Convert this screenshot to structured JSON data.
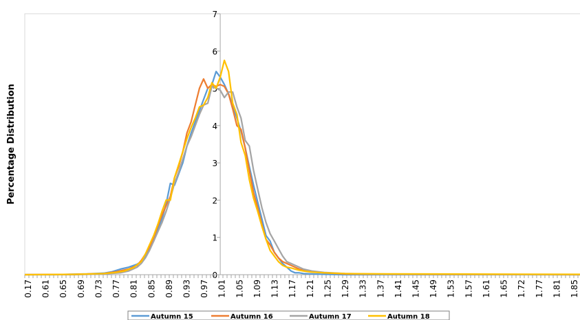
{
  "chart_data": {
    "type": "line",
    "title": "",
    "xlabel": "",
    "ylabel": "Percentage Distribution",
    "ylim": [
      0,
      7
    ],
    "yticks": [
      0,
      1,
      2,
      3,
      4,
      5,
      6,
      7
    ],
    "xlim": [
      0.53,
      1.87
    ],
    "x_tick_labels": [
      "0.17",
      "0.61",
      "0.65",
      "0.69",
      "0.73",
      "0.77",
      "0.81",
      "0.85",
      "0.89",
      "0.93",
      "0.97",
      "1.01",
      "1.05",
      "1.09",
      "1.13",
      "1.17",
      "1.21",
      "1.25",
      "1.29",
      "1.33",
      "1.37",
      "1.41",
      "1.45",
      "1.49",
      "1.53",
      "1.57",
      "1.61",
      "1.65",
      "1.72",
      "1.77",
      "1.81",
      "1.85"
    ],
    "grid": false,
    "legend_position": "bottom",
    "series": [
      {
        "name": "Autumn 15",
        "color": "#5B9BD5",
        "x": [
          0.53,
          0.6,
          0.68,
          0.72,
          0.74,
          0.76,
          0.78,
          0.8,
          0.81,
          0.82,
          0.83,
          0.84,
          0.85,
          0.86,
          0.87,
          0.88,
          0.89,
          0.9,
          0.91,
          0.92,
          0.93,
          0.94,
          0.95,
          0.96,
          0.97,
          0.98,
          0.99,
          1.0,
          1.01,
          1.02,
          1.03,
          1.04,
          1.05,
          1.06,
          1.07,
          1.08,
          1.09,
          1.1,
          1.11,
          1.12,
          1.13,
          1.14,
          1.15,
          1.16,
          1.17,
          1.18,
          1.19,
          1.2,
          1.22,
          1.25,
          1.3,
          1.4,
          1.6,
          1.87
        ],
        "y": [
          0,
          0,
          0.02,
          0.04,
          0.08,
          0.15,
          0.2,
          0.28,
          0.35,
          0.5,
          0.7,
          0.9,
          1.2,
          1.5,
          1.9,
          2.45,
          2.4,
          2.7,
          3.0,
          3.45,
          3.8,
          4.1,
          4.4,
          4.7,
          5.0,
          5.1,
          5.45,
          5.3,
          5.1,
          4.85,
          4.55,
          4.2,
          3.85,
          3.4,
          2.9,
          2.4,
          1.95,
          1.5,
          1.05,
          0.9,
          0.6,
          0.45,
          0.3,
          0.2,
          0.1,
          0.05,
          0.05,
          0.03,
          0.02,
          0.01,
          0,
          0,
          0,
          0
        ]
      },
      {
        "name": "Autumn 16",
        "color": "#ED7D31",
        "x": [
          0.53,
          0.65,
          0.72,
          0.75,
          0.78,
          0.8,
          0.81,
          0.82,
          0.83,
          0.84,
          0.85,
          0.86,
          0.87,
          0.88,
          0.89,
          0.9,
          0.91,
          0.92,
          0.93,
          0.94,
          0.95,
          0.96,
          0.97,
          0.98,
          0.99,
          1.0,
          1.01,
          1.02,
          1.03,
          1.04,
          1.05,
          1.06,
          1.07,
          1.08,
          1.09,
          1.1,
          1.11,
          1.12,
          1.13,
          1.14,
          1.15,
          1.16,
          1.17,
          1.18,
          1.19,
          1.2,
          1.22,
          1.25,
          1.3,
          1.4,
          1.87
        ],
        "y": [
          0,
          0.01,
          0.03,
          0.08,
          0.15,
          0.25,
          0.38,
          0.55,
          0.75,
          1.0,
          1.3,
          1.6,
          1.85,
          2.1,
          2.6,
          2.9,
          3.3,
          3.8,
          4.1,
          4.55,
          5.0,
          5.25,
          5.0,
          5.1,
          5.05,
          5.1,
          5.05,
          4.85,
          4.45,
          4.0,
          3.9,
          3.4,
          2.8,
          2.2,
          1.8,
          1.35,
          0.95,
          0.8,
          0.6,
          0.45,
          0.35,
          0.3,
          0.25,
          0.2,
          0.15,
          0.12,
          0.08,
          0.05,
          0.02,
          0.01,
          0
        ]
      },
      {
        "name": "Autumn 17",
        "color": "#A5A5A5",
        "x": [
          0.53,
          0.65,
          0.72,
          0.76,
          0.78,
          0.8,
          0.81,
          0.82,
          0.83,
          0.84,
          0.85,
          0.86,
          0.87,
          0.88,
          0.89,
          0.9,
          0.91,
          0.92,
          0.93,
          0.94,
          0.95,
          0.96,
          0.97,
          0.98,
          0.99,
          1.0,
          1.01,
          1.02,
          1.03,
          1.04,
          1.05,
          1.06,
          1.07,
          1.08,
          1.09,
          1.1,
          1.11,
          1.12,
          1.13,
          1.14,
          1.15,
          1.16,
          1.17,
          1.18,
          1.19,
          1.2,
          1.22,
          1.25,
          1.3,
          1.4,
          1.87
        ],
        "y": [
          0,
          0,
          0.02,
          0.05,
          0.1,
          0.2,
          0.3,
          0.45,
          0.65,
          0.9,
          1.15,
          1.4,
          1.7,
          2.05,
          2.45,
          2.75,
          3.1,
          3.45,
          3.7,
          4.0,
          4.3,
          4.55,
          4.6,
          5.05,
          5.0,
          4.95,
          4.75,
          4.9,
          4.9,
          4.5,
          4.2,
          3.6,
          3.45,
          2.8,
          2.3,
          1.8,
          1.4,
          1.1,
          0.9,
          0.7,
          0.5,
          0.35,
          0.3,
          0.25,
          0.2,
          0.15,
          0.1,
          0.06,
          0.03,
          0.01,
          0
        ]
      },
      {
        "name": "Autumn 18",
        "color": "#FFC000",
        "x": [
          0.53,
          0.65,
          0.72,
          0.75,
          0.77,
          0.79,
          0.81,
          0.82,
          0.83,
          0.84,
          0.85,
          0.86,
          0.87,
          0.88,
          0.89,
          0.9,
          0.91,
          0.92,
          0.93,
          0.94,
          0.95,
          0.96,
          0.97,
          0.98,
          0.99,
          1.0,
          1.01,
          1.02,
          1.03,
          1.04,
          1.05,
          1.06,
          1.07,
          1.08,
          1.09,
          1.1,
          1.11,
          1.12,
          1.13,
          1.14,
          1.15,
          1.16,
          1.17,
          1.18,
          1.19,
          1.2,
          1.22,
          1.25,
          1.3,
          1.4,
          1.87
        ],
        "y": [
          0,
          0.01,
          0.03,
          0.06,
          0.1,
          0.18,
          0.35,
          0.55,
          0.8,
          1.05,
          1.35,
          1.7,
          2.0,
          2.0,
          2.6,
          2.95,
          3.3,
          3.65,
          3.95,
          4.2,
          4.5,
          4.55,
          4.75,
          5.15,
          5.0,
          5.3,
          5.75,
          5.45,
          4.6,
          4.3,
          3.55,
          3.2,
          2.55,
          2.05,
          1.7,
          1.3,
          0.95,
          0.65,
          0.5,
          0.35,
          0.25,
          0.2,
          0.18,
          0.15,
          0.12,
          0.1,
          0.07,
          0.05,
          0.03,
          0.02,
          0.01
        ]
      }
    ]
  }
}
